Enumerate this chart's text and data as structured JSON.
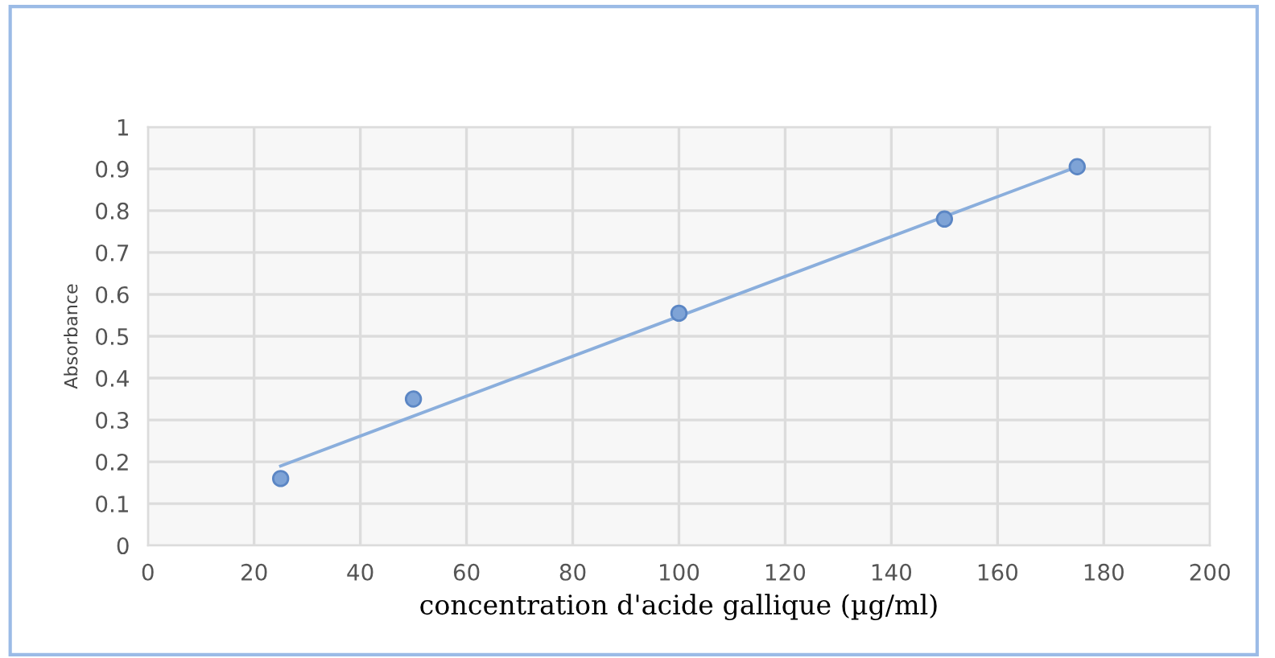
{
  "chart_data": {
    "type": "scatter",
    "xlabel": "concentration d'acide gallique (µg/ml)",
    "ylabel": "Absorbance",
    "x": [
      25,
      50,
      100,
      150,
      175
    ],
    "series": [
      {
        "color": "#7ea3d6",
        "values": [
          0.16,
          0.35,
          0.555,
          0.78,
          0.905
        ],
        "marker": "circle"
      },
      {
        "type": "line",
        "color": "#8aaedc",
        "x": [
          25,
          175
        ],
        "values": [
          0.19,
          0.905
        ],
        "marker": "none",
        "line_style": "solid"
      }
    ],
    "xlim": [
      0,
      200
    ],
    "ylim": [
      0,
      1
    ],
    "xticks": [
      0,
      20,
      40,
      60,
      80,
      100,
      120,
      140,
      160,
      180,
      200
    ],
    "yticks": [
      0,
      0.1,
      0.2,
      0.3,
      0.4,
      0.5,
      0.6,
      0.7,
      0.8,
      0.9,
      1
    ],
    "grid": true,
    "legend": false
  }
}
